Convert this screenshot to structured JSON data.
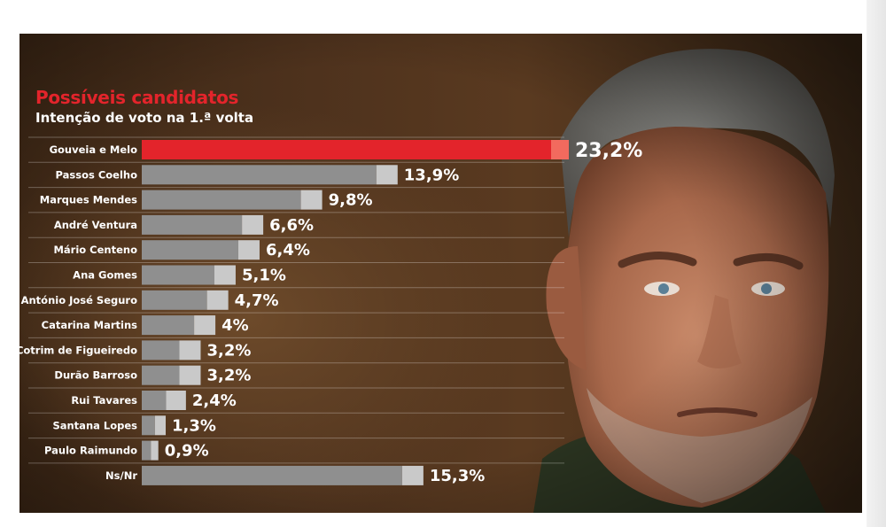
{
  "header": {
    "title": "Possíveis candidatos",
    "subtitle": "Intenção de voto na 1.ª volta"
  },
  "colors": {
    "highlight_bar": "#e3242b",
    "highlight_tip": "#f26a5e",
    "bar": "#8f8f8f",
    "bar_tip": "#c9c9c9"
  },
  "chart_data": {
    "type": "bar",
    "orientation": "horizontal",
    "title": "Possíveis candidatos",
    "subtitle": "Intenção de voto na 1.ª volta",
    "categories": [
      "Gouveia e Melo",
      "Passos Coelho",
      "Marques Mendes",
      "André Ventura",
      "Mário Centeno",
      "Ana Gomes",
      "António José Seguro",
      "Catarina Martins",
      "Cotrim de Figueiredo",
      "Durão Barroso",
      "Rui Tavares",
      "Santana Lopes",
      "Paulo Raimundo",
      "Ns/Nr"
    ],
    "values": [
      23.2,
      13.9,
      9.8,
      6.6,
      6.4,
      5.1,
      4.7,
      4.0,
      3.2,
      3.2,
      2.4,
      1.3,
      0.9,
      15.3
    ],
    "labels": [
      "23,2%",
      "13,9%",
      "9,8%",
      "6,6%",
      "6,4%",
      "5,1%",
      "4,7%",
      "4%",
      "3,2%",
      "3,2%",
      "2,4%",
      "1,3%",
      "0,9%",
      "15,3%"
    ],
    "highlight_index": 0,
    "xlim": [
      0,
      23.2
    ],
    "grid": false,
    "legend": "none"
  }
}
